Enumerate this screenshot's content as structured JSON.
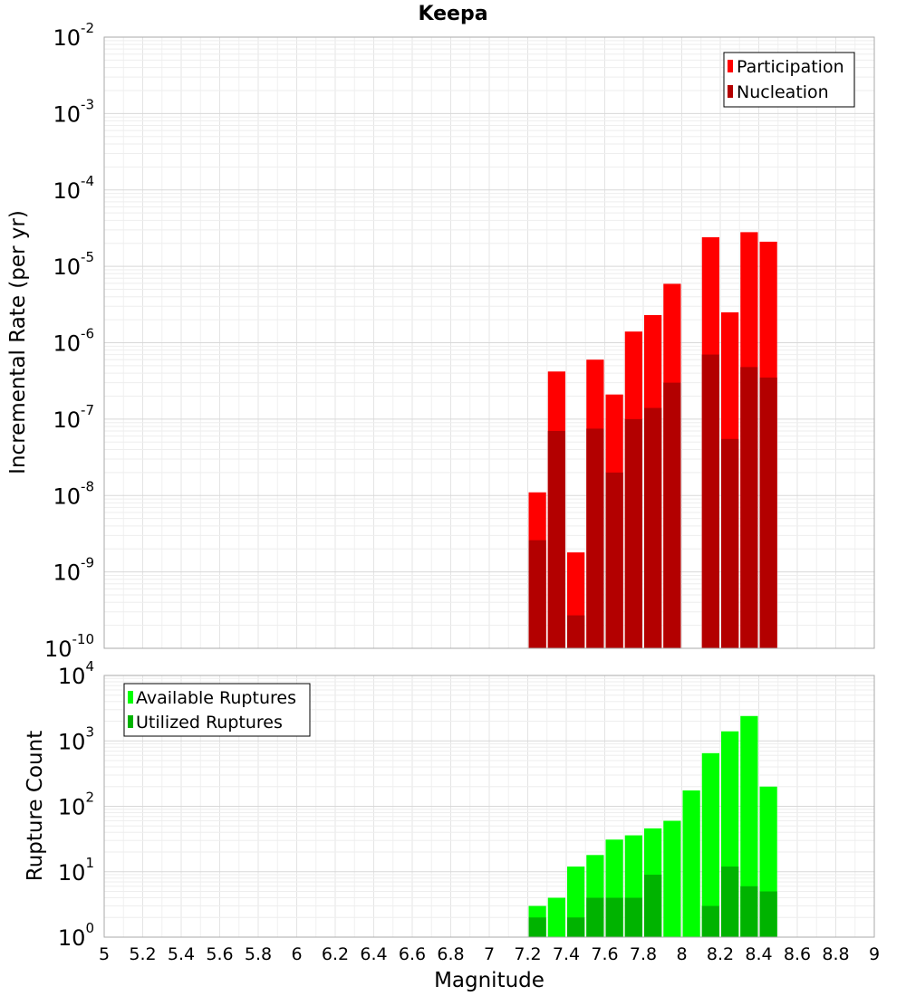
{
  "chart_data": [
    {
      "type": "bar",
      "title": "Keepa",
      "xlabel": "",
      "ylabel": "Incremental Rate (per yr)",
      "yscale": "log",
      "xlim": [
        5,
        9
      ],
      "ylim_exp": [
        -10,
        -2
      ],
      "bin_width": 0.1,
      "x": [
        7.25,
        7.35,
        7.45,
        7.55,
        7.65,
        7.75,
        7.85,
        7.95,
        8.15,
        8.25,
        8.35,
        8.45
      ],
      "series": [
        {
          "name": "Participation",
          "color": "#ff0000",
          "values": [
            1.1e-08,
            4.2e-07,
            1.8e-09,
            6e-07,
            2.1e-07,
            1.4e-06,
            2.3e-06,
            5.9e-06,
            2.4e-05,
            2.5e-06,
            2.8e-05,
            2.1e-05
          ]
        },
        {
          "name": "Nucleation",
          "color": "#b30000",
          "values": [
            2.6e-09,
            7e-08,
            2.7e-10,
            7.5e-08,
            2e-08,
            1e-07,
            1.4e-07,
            3e-07,
            7e-07,
            5.5e-08,
            4.8e-07,
            3.5e-07
          ]
        }
      ],
      "legend": [
        "Participation",
        "Nucleation"
      ],
      "legend_position": "top-right"
    },
    {
      "type": "bar",
      "title": "",
      "xlabel": "Magnitude",
      "ylabel": "Rupture Count",
      "yscale": "log",
      "xlim": [
        5,
        9
      ],
      "ylim_exp": [
        0,
        4
      ],
      "bin_width": 0.1,
      "x": [
        6.65,
        7.05,
        7.25,
        7.35,
        7.45,
        7.55,
        7.65,
        7.75,
        7.85,
        7.95,
        8.05,
        8.15,
        8.25,
        8.35,
        8.45
      ],
      "series": [
        {
          "name": "Available Ruptures",
          "color": "#00ff00",
          "values": [
            1,
            1,
            3,
            4,
            12,
            18,
            31,
            36,
            46,
            60,
            175,
            650,
            1400,
            2400,
            200
          ]
        },
        {
          "name": "Utilized Ruptures",
          "color": "#00b300",
          "values": [
            0,
            0,
            2,
            1,
            2,
            4,
            4,
            4,
            9,
            1,
            0,
            3,
            12,
            6,
            5
          ]
        }
      ],
      "legend": [
        "Available Ruptures",
        "Utilized Ruptures"
      ],
      "legend_position": "top-left"
    }
  ],
  "x_tick_labels": [
    "5",
    "5.2",
    "5.4",
    "5.6",
    "5.8",
    "6",
    "6.2",
    "6.4",
    "6.6",
    "6.8",
    "7",
    "7.2",
    "7.4",
    "7.6",
    "7.8",
    "8",
    "8.2",
    "8.4",
    "8.6",
    "8.8",
    "9"
  ],
  "top_y_tick_exponents": [
    "-10",
    "-9",
    "-8",
    "-7",
    "-6",
    "-5",
    "-4",
    "-3",
    "-2"
  ],
  "bottom_y_tick_exponents": [
    "0",
    "1",
    "2",
    "3",
    "4"
  ],
  "y_tick_base": "10"
}
